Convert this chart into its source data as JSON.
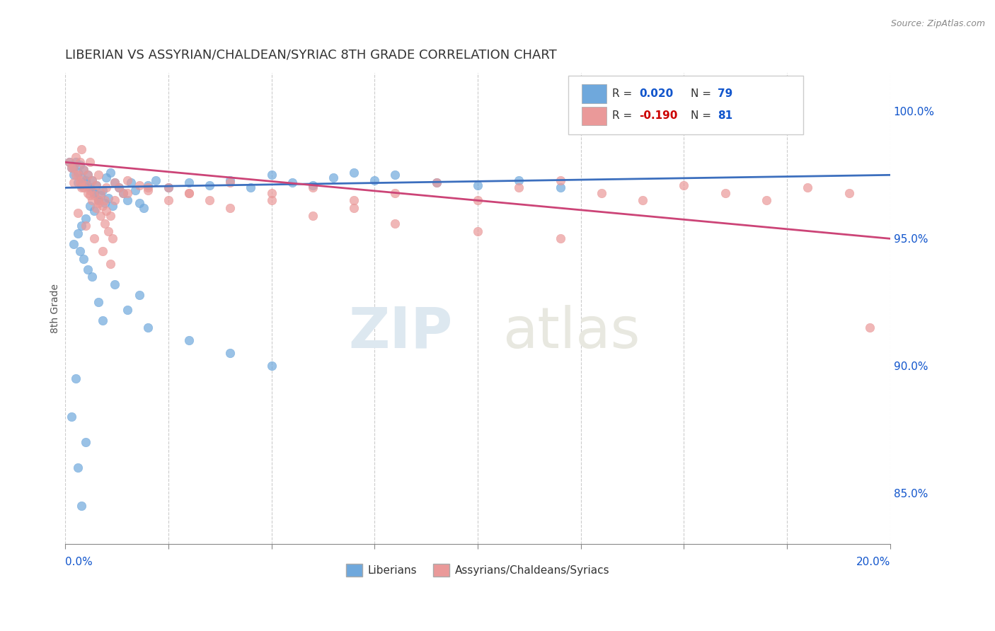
{
  "title": "LIBERIAN VS ASSYRIAN/CHALDEAN/SYRIAC 8TH GRADE CORRELATION CHART",
  "source": "Source: ZipAtlas.com",
  "ylabel": "8th Grade",
  "legend1_r": 0.02,
  "legend1_n": 79,
  "legend2_r": -0.19,
  "legend2_n": 81,
  "legend1_label": "Liberians",
  "legend2_label": "Assyrians/Chaldeans/Syriacs",
  "color_blue": "#6fa8dc",
  "color_pink": "#ea9999",
  "color_blue_line": "#3c6fbe",
  "color_pink_line": "#cc4477",
  "color_r_blue": "#1155cc",
  "color_r_pink": "#cc0000",
  "xlim": [
    0.0,
    20.0
  ],
  "ylim": [
    83.0,
    101.5
  ],
  "yticks": [
    85.0,
    90.0,
    95.0,
    100.0
  ],
  "ytick_labels": [
    "85.0%",
    "90.0%",
    "95.0%",
    "100.0%"
  ],
  "watermark_zip": "ZIP",
  "watermark_atlas": "atlas",
  "background_color": "#ffffff",
  "grid_color": "#cccccc",
  "blue_scatter_x": [
    0.2,
    0.3,
    0.15,
    0.4,
    0.5,
    0.6,
    0.7,
    0.8,
    0.9,
    1.0,
    1.1,
    1.2,
    0.25,
    0.35,
    0.45,
    0.55,
    0.65,
    0.75,
    0.85,
    0.95,
    1.05,
    1.15,
    1.3,
    1.4,
    1.5,
    1.6,
    1.7,
    1.8,
    1.9,
    2.0,
    2.2,
    2.5,
    3.0,
    3.5,
    4.0,
    4.5,
    5.0,
    5.5,
    6.0,
    6.5,
    7.0,
    7.5,
    8.0,
    9.0,
    10.0,
    11.0,
    12.0,
    0.1,
    0.2,
    0.3,
    0.4,
    0.5,
    0.6,
    0.7,
    0.8,
    0.6,
    0.7,
    0.5,
    0.4,
    0.3,
    0.2,
    0.35,
    0.45,
    0.55,
    0.65,
    1.2,
    1.8,
    0.8,
    1.5,
    0.9,
    2.0,
    3.0,
    4.0,
    5.0,
    0.25,
    0.15,
    0.5,
    0.3,
    0.4
  ],
  "blue_scatter_y": [
    97.5,
    97.2,
    97.8,
    97.1,
    97.3,
    97.0,
    96.8,
    96.5,
    96.9,
    97.4,
    97.6,
    97.2,
    98.0,
    97.9,
    97.7,
    97.5,
    97.3,
    97.1,
    96.7,
    96.4,
    96.6,
    96.3,
    97.0,
    96.8,
    96.5,
    97.2,
    96.9,
    96.4,
    96.2,
    97.1,
    97.3,
    97.0,
    97.2,
    97.1,
    97.3,
    97.0,
    97.5,
    97.2,
    97.1,
    97.4,
    97.6,
    97.3,
    97.5,
    97.2,
    97.1,
    97.3,
    97.0,
    98.0,
    97.8,
    97.6,
    97.4,
    97.2,
    97.0,
    96.8,
    96.5,
    96.3,
    96.1,
    95.8,
    95.5,
    95.2,
    94.8,
    94.5,
    94.2,
    93.8,
    93.5,
    93.2,
    92.8,
    92.5,
    92.2,
    91.8,
    91.5,
    91.0,
    90.5,
    90.0,
    89.5,
    88.0,
    87.0,
    86.0,
    84.5
  ],
  "pink_scatter_x": [
    0.1,
    0.2,
    0.3,
    0.4,
    0.5,
    0.6,
    0.7,
    0.8,
    0.9,
    1.0,
    1.1,
    1.2,
    1.3,
    1.4,
    0.25,
    0.35,
    0.45,
    0.55,
    0.65,
    0.75,
    0.85,
    0.95,
    1.5,
    1.8,
    2.0,
    2.5,
    3.0,
    3.5,
    4.0,
    5.0,
    6.0,
    7.0,
    8.0,
    9.0,
    10.0,
    11.0,
    12.0,
    13.0,
    14.0,
    15.0,
    16.0,
    17.0,
    18.0,
    19.0,
    0.15,
    0.25,
    0.35,
    0.45,
    0.55,
    0.65,
    0.75,
    0.85,
    0.95,
    1.05,
    1.15,
    0.4,
    0.6,
    0.8,
    1.0,
    1.2,
    0.3,
    0.5,
    0.7,
    0.9,
    1.1,
    2.0,
    3.0,
    5.0,
    7.0,
    0.2,
    0.4,
    0.6,
    0.8,
    1.5,
    2.5,
    4.0,
    6.0,
    8.0,
    10.0,
    12.0,
    19.5
  ],
  "pink_scatter_y": [
    98.0,
    97.8,
    97.5,
    97.3,
    97.1,
    96.9,
    96.7,
    96.5,
    96.3,
    96.1,
    95.9,
    97.2,
    97.0,
    96.8,
    98.2,
    98.0,
    97.7,
    97.5,
    97.3,
    97.1,
    96.8,
    96.5,
    97.3,
    97.1,
    96.9,
    97.0,
    96.8,
    96.5,
    97.2,
    96.8,
    97.0,
    96.5,
    96.8,
    97.2,
    96.5,
    97.0,
    97.3,
    96.8,
    96.5,
    97.1,
    96.8,
    96.5,
    97.0,
    96.8,
    97.8,
    97.5,
    97.2,
    97.0,
    96.8,
    96.5,
    96.2,
    95.9,
    95.6,
    95.3,
    95.0,
    98.5,
    98.0,
    97.5,
    97.0,
    96.5,
    96.0,
    95.5,
    95.0,
    94.5,
    94.0,
    97.0,
    96.8,
    96.5,
    96.2,
    97.2,
    97.0,
    96.7,
    96.4,
    96.8,
    96.5,
    96.2,
    95.9,
    95.6,
    95.3,
    95.0,
    91.5
  ],
  "blue_line_y0": 97.0,
  "blue_line_y1": 97.5,
  "pink_line_y0": 98.0,
  "pink_line_y1": 95.0
}
